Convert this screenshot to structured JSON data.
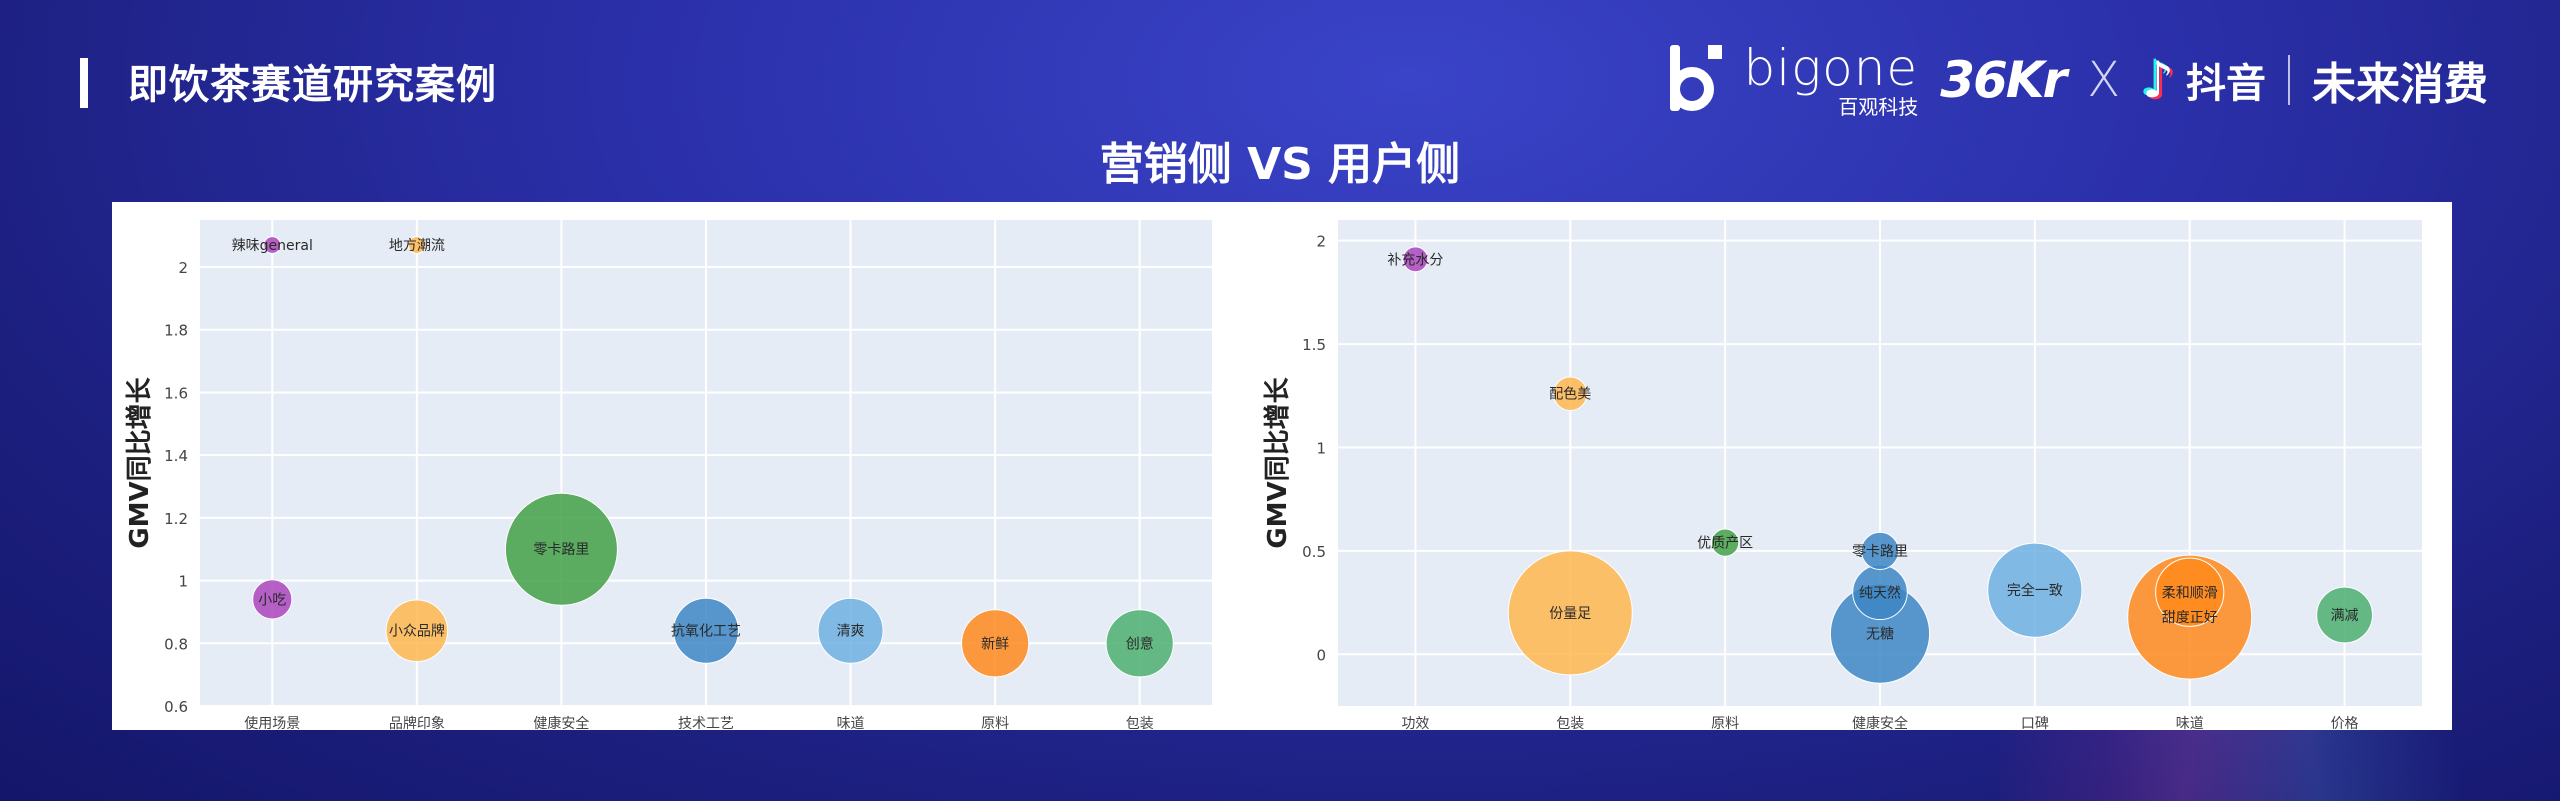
{
  "header": {
    "page_title": "即饮茶赛道研究案例",
    "subtitle": "营销侧 VS 用户侧",
    "logos": {
      "bigone_word": "bigone",
      "bigone_cn": "百观科技",
      "kr36": "36Kr",
      "x_separator": "X",
      "douyin": "抖音",
      "future_consumption": "未来消费"
    },
    "icons": [
      "bigone-logo-icon",
      "douyin-note-icon"
    ]
  },
  "colors": {
    "bg_top": "#3a44c8",
    "bg_bottom": "#14166a",
    "plot_bg": "#e5ecf6",
    "purple": "#ab47bc",
    "light_orange": "#ffb74d",
    "green": "#43a047",
    "steel_blue": "#3d87c4",
    "light_blue": "#6fb0e0",
    "orange": "#ff8a1c",
    "mint_green": "#4caf6e"
  },
  "chart_data": [
    {
      "type": "scatter",
      "subtype": "bubble",
      "ylabel": "GMV同比增长",
      "xlabel": "",
      "categories": [
        "使用场景",
        "品牌印象",
        "健康安全",
        "技术工艺",
        "味道",
        "原料",
        "包装"
      ],
      "ylim": [
        0.6,
        2.15
      ],
      "yticks": [
        0.6,
        0.8,
        1,
        1.2,
        1.4,
        1.6,
        1.8,
        2
      ],
      "ytick_labels": [
        "0.6",
        "0.8",
        "1",
        "1.2",
        "1.4",
        "1.6",
        "1.8",
        "2"
      ],
      "grid": true,
      "points": [
        {
          "category": "使用场景",
          "label": "辣味general",
          "y": 2.07,
          "size": 0.15,
          "color": "#ab47bc"
        },
        {
          "category": "品牌印象",
          "label": "地方潮流",
          "y": 2.07,
          "size": 0.15,
          "color": "#ffb74d"
        },
        {
          "category": "使用场景",
          "label": "小吃",
          "y": 0.94,
          "size": 0.35,
          "color": "#ab47bc"
        },
        {
          "category": "品牌印象",
          "label": "小众品牌",
          "y": 0.84,
          "size": 0.55,
          "color": "#ffb74d"
        },
        {
          "category": "健康安全",
          "label": "零卡路里",
          "y": 1.1,
          "size": 1.0,
          "color": "#43a047"
        },
        {
          "category": "技术工艺",
          "label": "抗氧化工艺",
          "y": 0.84,
          "size": 0.58,
          "color": "#3d87c4"
        },
        {
          "category": "味道",
          "label": "清爽",
          "y": 0.84,
          "size": 0.58,
          "color": "#6fb0e0"
        },
        {
          "category": "原料",
          "label": "新鲜",
          "y": 0.8,
          "size": 0.6,
          "color": "#ff8a1c"
        },
        {
          "category": "包装",
          "label": "创意",
          "y": 0.8,
          "size": 0.6,
          "color": "#4caf6e"
        }
      ]
    },
    {
      "type": "scatter",
      "subtype": "bubble",
      "ylabel": "GMV同比增长",
      "xlabel": "",
      "categories": [
        "功效",
        "包装",
        "原料",
        "健康安全",
        "口碑",
        "味道",
        "价格"
      ],
      "ylim": [
        -0.25,
        2.1
      ],
      "yticks": [
        0,
        0.5,
        1,
        1.5,
        2
      ],
      "ytick_labels": [
        "0",
        "0.5",
        "1",
        "1.5",
        "2"
      ],
      "grid": true,
      "points": [
        {
          "category": "功效",
          "label": "补充水分",
          "y": 1.91,
          "size": 0.2,
          "color": "#ab47bc"
        },
        {
          "category": "包装",
          "label": "配色美",
          "y": 1.26,
          "size": 0.27,
          "color": "#ffb74d"
        },
        {
          "category": "包装",
          "label": "份量足",
          "y": 0.2,
          "size": 1.0,
          "color": "#ffb74d"
        },
        {
          "category": "原料",
          "label": "优质产区",
          "y": 0.54,
          "size": 0.22,
          "color": "#43a047"
        },
        {
          "category": "健康安全",
          "label": "零卡路里",
          "y": 0.5,
          "size": 0.3,
          "color": "#3d87c4"
        },
        {
          "category": "健康安全",
          "label": "纯天然",
          "y": 0.3,
          "size": 0.44,
          "color": "#3d87c4"
        },
        {
          "category": "健康安全",
          "label": "无糖",
          "y": 0.1,
          "size": 0.8,
          "color": "#3d87c4"
        },
        {
          "category": "口碑",
          "label": "完全一致",
          "y": 0.31,
          "size": 0.76,
          "color": "#6fb0e0"
        },
        {
          "category": "味道",
          "label": "柔和顺滑",
          "y": 0.3,
          "size": 0.55,
          "color": "#ff8a1c"
        },
        {
          "category": "味道",
          "label": "甜度正好",
          "y": 0.18,
          "size": 1.0,
          "color": "#ff8a1c"
        },
        {
          "category": "价格",
          "label": "满减",
          "y": 0.19,
          "size": 0.45,
          "color": "#4caf6e"
        }
      ]
    }
  ]
}
